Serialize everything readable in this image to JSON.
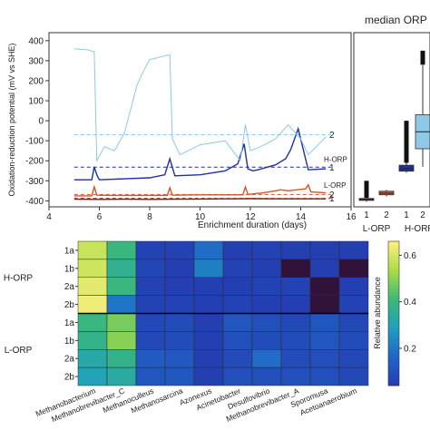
{
  "chart_data": [
    {
      "type": "line",
      "xlabel": "Enrichment duration (days)",
      "ylabel": "Oxidation-reduction potential (mV vs SHE)",
      "xlim": [
        4,
        16
      ],
      "ylim": [
        -430,
        440
      ],
      "x_ticks": [
        4,
        6,
        8,
        10,
        12,
        14,
        16
      ],
      "y_ticks": [
        400,
        300,
        200,
        100,
        0,
        -100,
        -200,
        -300,
        -400
      ],
      "series": [
        {
          "name": "1a",
          "color": "#1f2f9c",
          "x": [
            5.0,
            5.7,
            5.8,
            5.9,
            6.0,
            7.0,
            8.0,
            8.6,
            8.8,
            9.0,
            10.0,
            11.0,
            11.5,
            11.75,
            11.9,
            12.1,
            12.3,
            13.0,
            13.2,
            13.4,
            13.6,
            13.9,
            14.3,
            15.0
          ],
          "y": [
            -295,
            -295,
            -230,
            -270,
            -295,
            -290,
            -285,
            -270,
            -190,
            -275,
            -270,
            -250,
            -215,
            -115,
            -240,
            -250,
            -245,
            -220,
            -205,
            -190,
            -145,
            -40,
            -245,
            -240
          ]
        },
        {
          "name": "1b",
          "color": "#8ec9e8",
          "x": [
            5.0,
            5.5,
            5.8,
            5.9,
            6.2,
            6.6,
            7.0,
            7.5,
            7.8,
            8.0,
            8.8,
            8.9,
            9.2,
            10.0,
            11.0,
            11.6,
            11.8,
            12.0,
            12.4,
            13.0,
            13.5,
            14.0,
            14.3,
            15.0
          ],
          "y": [
            360,
            355,
            345,
            -200,
            -130,
            -150,
            -60,
            180,
            260,
            305,
            330,
            -90,
            -170,
            -120,
            -100,
            -200,
            -20,
            -150,
            -130,
            -90,
            -20,
            -90,
            -170,
            -80
          ]
        },
        {
          "name": "2a",
          "color": "#d4562b",
          "x": [
            5.0,
            5.7,
            5.8,
            5.9,
            6.5,
            8.7,
            8.8,
            8.9,
            10.0,
            11.7,
            11.8,
            11.9,
            12.5,
            13.0,
            13.2,
            13.5,
            14.2,
            14.3,
            14.4,
            15.0
          ],
          "y": [
            -375,
            -375,
            -330,
            -372,
            -373,
            -373,
            -335,
            -372,
            -370,
            -370,
            -330,
            -368,
            -360,
            -350,
            -345,
            -350,
            -340,
            -320,
            -355,
            -360
          ]
        },
        {
          "name": "2b",
          "color": "#7a2015",
          "x": [
            5.0,
            6.0,
            7.0,
            8.0,
            9.0,
            10.0,
            11.0,
            12.0,
            13.0,
            14.0,
            15.0
          ],
          "y": [
            -392,
            -393,
            -392,
            -393,
            -392,
            -391,
            -390,
            -389,
            -390,
            -390,
            -390
          ]
        }
      ],
      "h_lines": [
        {
          "label": "2",
          "group": "H-ORP",
          "y": -70,
          "color": "#8ec9e8"
        },
        {
          "label": "1",
          "group": "H-ORP",
          "y": -232,
          "color": "#1f2f9c"
        },
        {
          "label": "2",
          "group": "L-ORP",
          "y": -368,
          "color": "#d4562b"
        },
        {
          "label": "1",
          "group": "L-ORP",
          "y": -388,
          "color": "#7a2015"
        }
      ],
      "annotations": [
        "2",
        "H-ORP",
        "1",
        "L-ORP",
        "2",
        "1"
      ]
    },
    {
      "type": "box",
      "title": "median ORP",
      "categories": [
        "1",
        "2",
        "1",
        "2"
      ],
      "groups": [
        "L-ORP",
        "H-ORP"
      ],
      "boxes": [
        {
          "group": "L-ORP",
          "label": "1",
          "color": "#7a2015",
          "q1": -398,
          "median": -393,
          "q3": -388,
          "whisker_low": -405,
          "whisker_high": -385,
          "outliers_high": -300
        },
        {
          "group": "L-ORP",
          "label": "2",
          "color": "#d4562b",
          "q1": -370,
          "median": -362,
          "q3": -352,
          "whisker_low": -378,
          "whisker_high": -345
        },
        {
          "group": "H-ORP",
          "label": "1",
          "color": "#1f2f9c",
          "q1": -252,
          "median": -240,
          "q3": -222,
          "whisker_low": -260,
          "whisker_high": -210,
          "outliers_high": 0
        },
        {
          "group": "H-ORP",
          "label": "2",
          "color": "#8ec9e8",
          "q1": -140,
          "median": -55,
          "q3": 30,
          "whisker_low": -230,
          "whisker_high": 280,
          "outliers_high": 350
        }
      ],
      "ylim": [
        -430,
        440
      ]
    },
    {
      "type": "heatmap",
      "rows": [
        "1a",
        "1b",
        "2a",
        "2b",
        "1a",
        "1b",
        "2a",
        "2b"
      ],
      "row_groups": [
        "H-ORP",
        "L-ORP"
      ],
      "columns": [
        "Methanobacterium",
        "Methanobrevibacter_C",
        "Methanoculleus",
        "Methanosarcina",
        "Azonexus",
        "Acinetobacter",
        "Desulfovibrio",
        "Methanobrevibacter_A",
        "Sporomusa",
        "Acetoanaerobium"
      ],
      "values": [
        [
          0.58,
          0.4,
          0.06,
          0.06,
          0.18,
          0.05,
          0.06,
          0.05,
          0.05,
          0.05
        ],
        [
          0.59,
          0.37,
          0.07,
          0.05,
          0.22,
          0.06,
          0.05,
          0.04,
          0.05,
          0.04
        ],
        [
          0.62,
          0.4,
          0.06,
          0.05,
          0.05,
          0.05,
          0.06,
          0.06,
          0.04,
          0.05
        ],
        [
          0.64,
          0.2,
          0.06,
          0.06,
          0.05,
          0.06,
          0.05,
          0.05,
          0.04,
          0.06
        ],
        [
          0.4,
          0.48,
          0.08,
          0.09,
          0.05,
          0.12,
          0.1,
          0.08,
          0.12,
          0.08
        ],
        [
          0.38,
          0.5,
          0.08,
          0.09,
          0.05,
          0.1,
          0.09,
          0.09,
          0.12,
          0.09
        ],
        [
          0.33,
          0.38,
          0.14,
          0.13,
          0.05,
          0.09,
          0.18,
          0.09,
          0.1,
          0.08
        ],
        [
          0.3,
          0.34,
          0.12,
          0.12,
          0.05,
          0.1,
          0.1,
          0.1,
          0.1,
          0.08
        ]
      ],
      "colorbar_label": "Relative abundance",
      "colorbar_ticks": [
        0.2,
        0.4,
        0.6
      ],
      "vmin": 0.04,
      "vmax": 0.66
    }
  ]
}
